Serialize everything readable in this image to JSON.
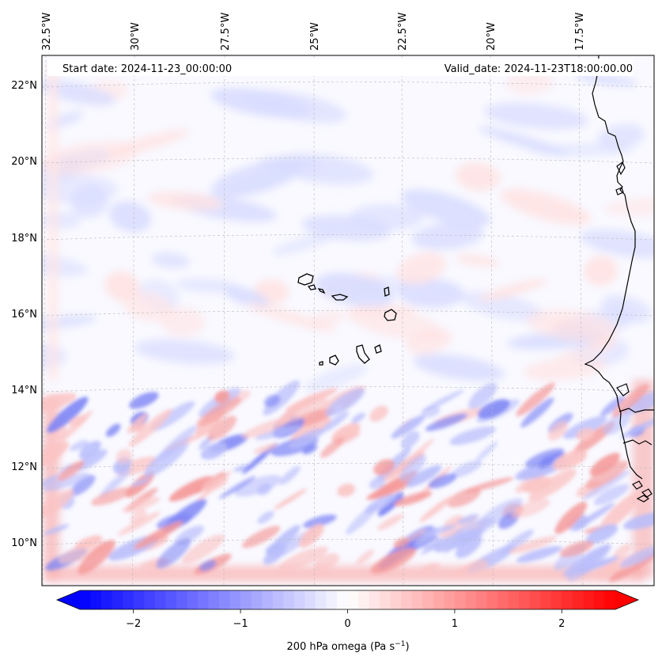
{
  "header": {
    "start_date": "Start date: 2024-11-23_00:00:00",
    "valid_date": "Valid_date: 2024-11-23T18:00:00.00"
  },
  "map": {
    "lon_labels": [
      "32.5°W",
      "30°W",
      "27.5°W",
      "25°W",
      "22.5°W",
      "20°W",
      "17.5°W"
    ],
    "lat_labels": [
      "22°N",
      "20°N",
      "18°N",
      "16°N",
      "14°N",
      "12°N",
      "10°N"
    ],
    "colormap": "bwr",
    "gridlines": true,
    "coastline_color": "#000000"
  },
  "colorbar": {
    "label": "200 hPa omega (Pa s",
    "label_sup": "−1",
    "label_end": ")",
    "ticks": [
      "−2",
      "−1",
      "0",
      "1",
      "2"
    ],
    "tick_values": [
      -2,
      -1,
      0,
      1,
      2
    ],
    "range": [
      -2.5,
      2.5
    ],
    "levels": 50,
    "colors": {
      "min": "#0000ff",
      "mid": "#ffffff",
      "max": "#ff0000"
    }
  }
}
